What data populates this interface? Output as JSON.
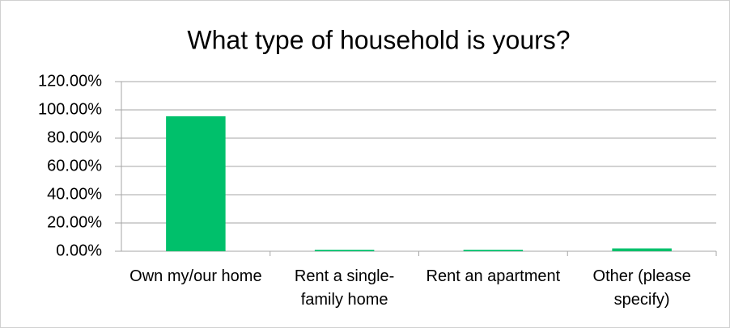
{
  "chart_data": {
    "type": "bar",
    "title": "What type of household is yours?",
    "categories": [
      "Own my/our home",
      "Rent a single-family home",
      "Rent an apartment",
      "Other (please specify)"
    ],
    "values": [
      95.5,
      1,
      1,
      2
    ],
    "color": "#00c06b",
    "ylim": [
      0,
      120
    ],
    "yticks": [
      {
        "value": 0,
        "label": "0.00%"
      },
      {
        "value": 20,
        "label": "20.00%"
      },
      {
        "value": 40,
        "label": "40.00%"
      },
      {
        "value": 60,
        "label": "60.00%"
      },
      {
        "value": 80,
        "label": "80.00%"
      },
      {
        "value": 100,
        "label": "100.00%"
      },
      {
        "value": 120,
        "label": "120.00%"
      }
    ],
    "grid": true
  }
}
